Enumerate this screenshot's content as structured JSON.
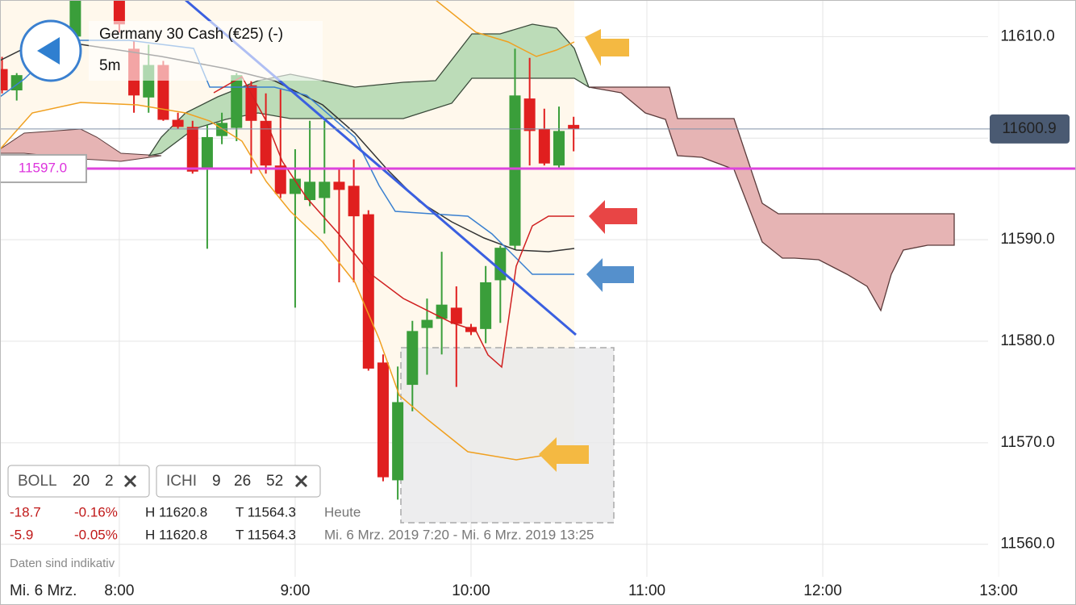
{
  "header": {
    "title": "Germany 30 Cash (€25) (-)",
    "interval": "5m"
  },
  "indicators": [
    {
      "name": "BOLL",
      "params": [
        20,
        2
      ]
    },
    {
      "name": "ICHI",
      "params": [
        9,
        26,
        52
      ]
    }
  ],
  "stats": [
    {
      "change": "-18.7",
      "change_pct": "-0.16%",
      "high": "H 11620.8",
      "low": "T 11564.3",
      "period": "Heute"
    },
    {
      "change": "-5.9",
      "change_pct": "-0.05%",
      "high": "H 11620.8",
      "low": "T 11564.3",
      "period": "Mi. 6 Mrz. 2019 7:20 - Mi. 6 Mrz. 2019 13:25"
    }
  ],
  "disclaimer": "Daten sind indikativ",
  "chart_data": {
    "type": "candlestick",
    "x": [
      440,
      445,
      465,
      480,
      485,
      490,
      495,
      500,
      505,
      510,
      515,
      520,
      525,
      530,
      535,
      540,
      545,
      550,
      555,
      560,
      565,
      570,
      575,
      580,
      585,
      590,
      595,
      600,
      605,
      610,
      615,
      620,
      625,
      630,
      635
    ],
    "open": [
      11606.8,
      11604.7,
      11610.0,
      11614.0,
      11608.8,
      11604.0,
      11607.2,
      11601.8,
      11601.1,
      11596.9,
      11600.2,
      11601.0,
      11605.2,
      11601.7,
      11597.3,
      11594.5,
      11593.9,
      11594.1,
      11595.7,
      11595.3,
      11592.5,
      11577.9,
      11566.3,
      11575.7,
      11581.3,
      11582.2,
      11583.3,
      11581.4,
      11581.2,
      11586.0,
      11589.4,
      11603.9,
      11600.9,
      11597.3,
      11601.3
    ],
    "high": [
      11608.0,
      11606.4,
      11615.0,
      11615.0,
      11609.6,
      11609.2,
      11607.6,
      11602.5,
      11601.7,
      11601.3,
      11602.5,
      11606.4,
      11605.6,
      11604.4,
      11604.8,
      11598.9,
      11601.7,
      11601.7,
      11596.9,
      11597.9,
      11592.9,
      11578.7,
      11577.5,
      11582.0,
      11584.2,
      11588.8,
      11585.4,
      11581.7,
      11587.4,
      11589.4,
      11608.8,
      11607.9,
      11602.9,
      11603.1,
      11602.1
    ],
    "low": [
      11604.4,
      11603.7,
      11609.6,
      11610.4,
      11602.5,
      11602.5,
      11601.7,
      11600.9,
      11596.5,
      11589.1,
      11599.4,
      11599.7,
      11596.5,
      11596.5,
      11594.1,
      11583.3,
      11593.3,
      11590.6,
      11585.8,
      11585.8,
      11577.1,
      11566.2,
      11564.4,
      11573.1,
      11576.7,
      11578.7,
      11575.5,
      11580.6,
      11579.8,
      11581.8,
      11589.0,
      11597.3,
      11597.3,
      11597.1,
      11598.7
    ],
    "close": [
      11604.7,
      11606.2,
      11614.0,
      11611.2,
      11604.2,
      11607.2,
      11601.8,
      11601.1,
      11596.7,
      11600.1,
      11601.5,
      11606.2,
      11601.7,
      11597.3,
      11594.5,
      11596.0,
      11595.7,
      11595.7,
      11594.9,
      11592.3,
      11577.3,
      11566.6,
      11574.0,
      11581.0,
      11582.1,
      11583.6,
      11581.7,
      11580.9,
      11585.8,
      11589.2,
      11604.2,
      11600.7,
      11597.5,
      11600.7,
      11600.9
    ],
    "xlim": [
      439.3,
      776.4
    ],
    "xticks": [
      {
        "value": 480,
        "label": "8:00"
      },
      {
        "value": 540,
        "label": "9:00"
      },
      {
        "value": 600,
        "label": "10:00"
      },
      {
        "value": 660,
        "label": "11:00"
      },
      {
        "value": 720,
        "label": "12:00"
      },
      {
        "value": 780,
        "label": "13:00"
      }
    ],
    "x_start_label": "Mi. 6 Mrz.",
    "ylim": [
      11556.8,
      11613.6
    ],
    "yticks": [
      {
        "value": 11560,
        "label": "11560.0"
      },
      {
        "value": 11570,
        "label": "11570.0"
      },
      {
        "value": 11580,
        "label": "11580.0"
      },
      {
        "value": 11590,
        "label": "11590.0"
      },
      {
        "value": 11600,
        "label": "11600.0"
      },
      {
        "value": 11610,
        "label": "11610.0"
      }
    ],
    "up_color": "#3a9e3a",
    "down_color": "#e01f1f",
    "grid": true,
    "last_price": 11600.9,
    "alert": {
      "value": 11597,
      "label": "11597.0"
    }
  }
}
